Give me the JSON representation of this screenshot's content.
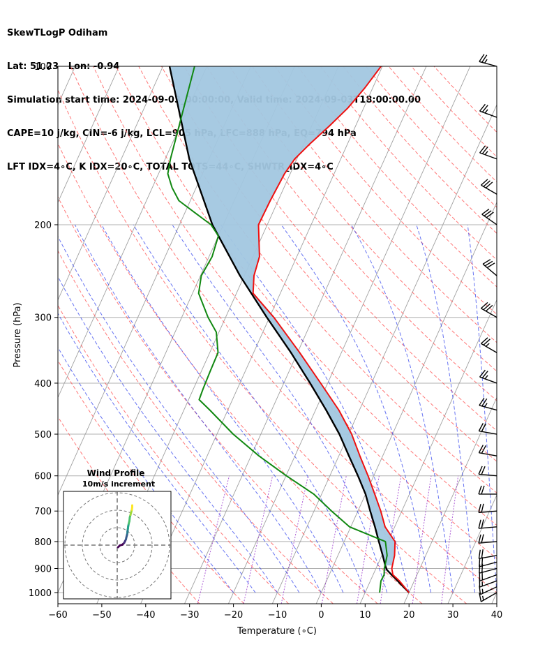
{
  "header": {
    "line1": "SkewTLogP Odiham",
    "line2": "Lat: 51.23   Lon: -0.94",
    "line3": "Simulation start time: 2024-09-03_00:00:00, Valid time: 2024-09-03T18:00:00.00",
    "line4": "CAPE=10 j/kg, CIN=-6 j/kg, LCL=905 hPa, LFC=888 hPa, EQ=794 hPa",
    "line5": "LFT IDX=4∘C, K IDX=20∘C, TOTAL TOTS=44∘C, SHWTR_IDX=4∘C"
  },
  "colors": {
    "temperature": "#ee1111",
    "dewpoint": "#118811",
    "parcel": "#000000",
    "cape_fill": "#a2c7e0",
    "dry_adiabat": "#ff5555",
    "moist_adiabat": "#3344ee",
    "mixing_ratio": "#9933cc",
    "isotherm": "#a0a0a0"
  },
  "chart_data": {
    "type": "line",
    "title": "SkewTLogP Odiham",
    "xlabel": "Temperature (∘C)",
    "ylabel": "Pressure (hPa)",
    "xlim": [
      -60,
      40
    ],
    "ylim": [
      1050,
      100
    ],
    "x_ticks": [
      -60,
      -50,
      -40,
      -30,
      -20,
      -10,
      0,
      10,
      20,
      30,
      40
    ],
    "x_tick_labels": [
      "−60",
      "−50",
      "−40",
      "−30",
      "−20",
      "−10",
      "0",
      "10",
      "20",
      "30",
      "40"
    ],
    "y_ticks": [
      1000,
      900,
      800,
      700,
      600,
      500,
      400,
      300,
      200,
      100
    ],
    "y_tick_labels": [
      "1000",
      "900",
      "800",
      "700",
      "600",
      "500",
      "400",
      "300",
      "200",
      "100"
    ],
    "series": [
      {
        "name": "Temperature",
        "p": [
          1000,
          950,
          925,
          900,
          850,
          800,
          750,
          700,
          650,
          600,
          550,
          500,
          450,
          400,
          350,
          300,
          270,
          250,
          230,
          200,
          180,
          160,
          150,
          140,
          130,
          120,
          110,
          100
        ],
        "t": [
          20,
          16.6,
          14.5,
          13.6,
          12.9,
          11.6,
          7.8,
          5.2,
          2.1,
          -1.3,
          -5.2,
          -9.3,
          -14.7,
          -21.6,
          -29.5,
          -39.0,
          -46.2,
          -47.8,
          -48.5,
          -52.0,
          -51.8,
          -51.3,
          -50.5,
          -48.5,
          -46.0,
          -43.6,
          -41.8,
          -40.3
        ]
      },
      {
        "name": "Dewpoint",
        "p": [
          1000,
          950,
          925,
          900,
          850,
          800,
          750,
          700,
          650,
          600,
          550,
          500,
          450,
          430,
          410,
          380,
          350,
          320,
          300,
          270,
          250,
          230,
          210,
          200,
          190,
          180,
          170,
          160,
          150,
          100
        ],
        "t": [
          13.3,
          12.4,
          12.5,
          11.9,
          11.2,
          9.4,
          -0.3,
          -6.0,
          -11.8,
          -19.9,
          -28.2,
          -36.3,
          -44.1,
          -47.6,
          -47.8,
          -48.0,
          -48.1,
          -50.6,
          -54.0,
          -58.6,
          -59.8,
          -59.3,
          -60.0,
          -62.8,
          -67.6,
          -72.6,
          -75.5,
          -77.9,
          -78.8,
          -82.8
        ]
      },
      {
        "name": "Parcel",
        "p": [
          1000,
          950,
          925,
          905,
          888,
          850,
          800,
          750,
          700,
          650,
          600,
          550,
          500,
          450,
          400,
          350,
          300,
          250,
          200,
          150,
          100
        ],
        "t": [
          20,
          16.2,
          14.2,
          12.6,
          11.8,
          10.2,
          7.9,
          5.5,
          2.8,
          0.0,
          -3.6,
          -7.7,
          -12.1,
          -17.6,
          -24.0,
          -31.5,
          -40.6,
          -51.0,
          -62.5,
          -74.5,
          -88.5
        ]
      }
    ],
    "cape_region": {
      "color": "#a2c7e0"
    },
    "wind_barbs": {
      "p": [
        1000,
        975,
        950,
        925,
        900,
        875,
        850,
        800,
        750,
        700,
        650,
        600,
        550,
        500,
        450,
        400,
        350,
        300,
        250,
        200,
        175,
        150,
        125,
        100
      ],
      "speed_kt": [
        15,
        15,
        15,
        20,
        20,
        20,
        20,
        20,
        20,
        20,
        20,
        20,
        20,
        20,
        25,
        25,
        25,
        30,
        30,
        30,
        30,
        25,
        25,
        25
      ],
      "direction_deg": [
        240,
        245,
        250,
        250,
        255,
        255,
        260,
        265,
        265,
        265,
        270,
        275,
        280,
        280,
        285,
        290,
        300,
        300,
        310,
        305,
        300,
        290,
        290,
        285
      ]
    },
    "inset": {
      "title": "Wind Profile",
      "subtitle": "10m/s increment",
      "rings_ms": [
        10,
        20,
        30
      ],
      "hodograph_u": [
        0.5,
        1.5,
        3.0,
        4.0,
        4.5,
        5.0,
        5.2,
        5.6,
        5.8,
        5.9,
        6.1,
        6.3,
        6.6,
        7.0,
        7.2,
        7.6,
        8.0,
        8.4,
        8.6,
        8.6
      ],
      "hodograph_v": [
        0.0,
        1.0,
        1.5,
        2.5,
        3.5,
        4.5,
        5.5,
        7.0,
        8.0,
        9.0,
        10.5,
        12.0,
        13.5,
        15.0,
        17.0,
        18.5,
        20.0,
        21.5,
        23.0,
        24.0
      ]
    }
  }
}
